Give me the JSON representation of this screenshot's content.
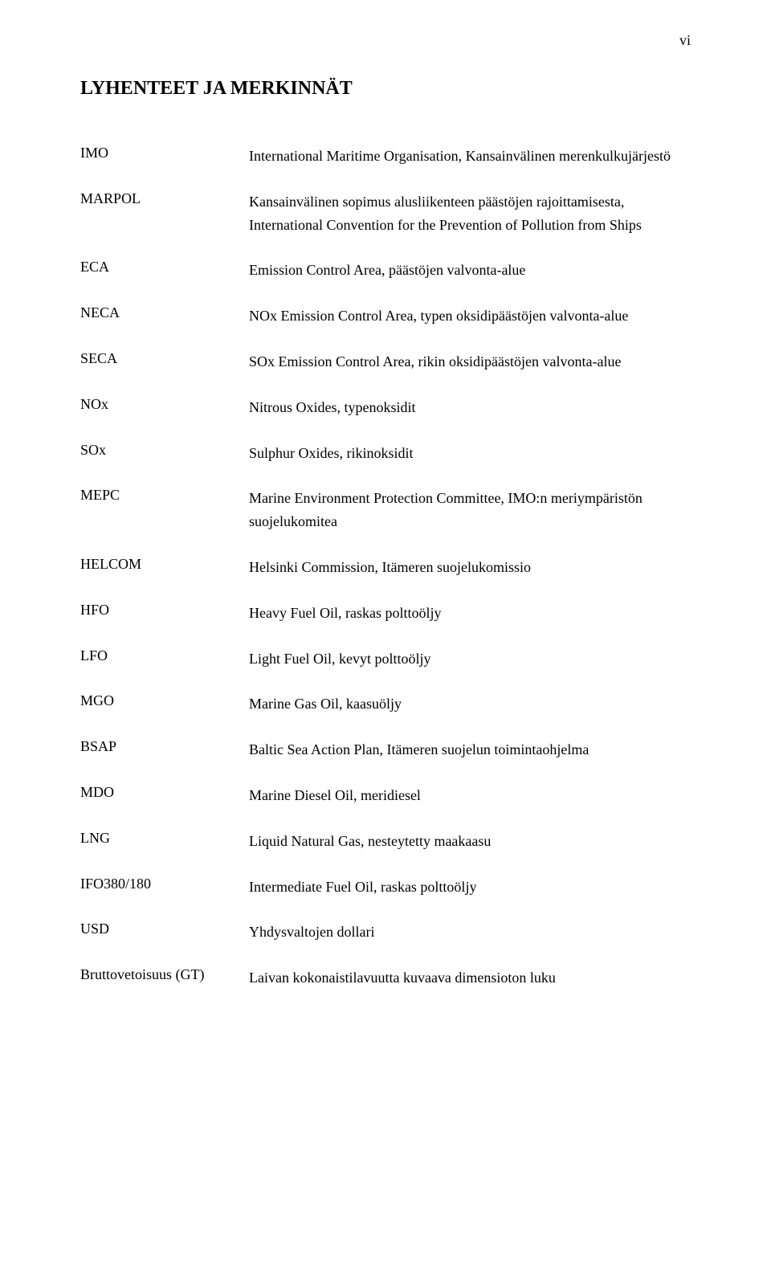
{
  "page_number": "vi",
  "heading": "LYHENTEET JA MERKINNÄT",
  "entries": [
    {
      "term": "IMO",
      "definition": "International Maritime Organisation, Kansainvälinen merenkulkujärjestö"
    },
    {
      "term": "MARPOL",
      "definition": "Kansainvälinen sopimus alusliikenteen päästöjen rajoittamisesta, International Convention for the Prevention of Pollution from Ships"
    },
    {
      "term": "ECA",
      "definition": "Emission Control Area, päästöjen valvonta-alue"
    },
    {
      "term": "NECA",
      "definition": "NOx Emission Control Area, typen oksidipäästöjen valvonta-alue"
    },
    {
      "term": "SECA",
      "definition": "SOx Emission Control Area, rikin oksidipäästöjen valvonta-alue"
    },
    {
      "term": "NOx",
      "definition": "Nitrous Oxides, typenoksidit"
    },
    {
      "term": "SOx",
      "definition": "Sulphur Oxides, rikinoksidit"
    },
    {
      "term": "MEPC",
      "definition": "Marine Environment Protection Committee, IMO:n meriympäristön suojelukomitea"
    },
    {
      "term": "HELCOM",
      "definition": "Helsinki Commission, Itämeren suojelukomissio"
    },
    {
      "term": "HFO",
      "definition": "Heavy Fuel Oil, raskas polttoöljy"
    },
    {
      "term": "LFO",
      "definition": "Light Fuel Oil, kevyt polttoöljy"
    },
    {
      "term": "MGO",
      "definition": "Marine Gas Oil, kaasuöljy"
    },
    {
      "term": "BSAP",
      "definition": "Baltic Sea Action Plan, Itämeren suojelun toimintaohjelma"
    },
    {
      "term": "MDO",
      "definition": "Marine Diesel Oil, meridiesel"
    },
    {
      "term": "LNG",
      "definition": "Liquid Natural Gas, nesteytetty maakaasu"
    },
    {
      "term": "IFO380/180",
      "definition": "Intermediate Fuel Oil, raskas polttoöljy"
    },
    {
      "term": "USD",
      "definition": "Yhdysvaltojen dollari"
    },
    {
      "term": "Bruttovetoisuus (GT)",
      "definition": "Laivan kokonaistilavuutta kuvaava dimensioton luku"
    }
  ]
}
